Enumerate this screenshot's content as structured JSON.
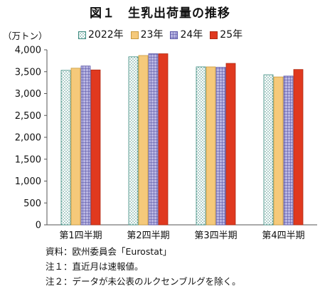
{
  "title": "図１　生乳出荷量の推移",
  "unit_label": "（万トン）",
  "notes": [
    "資料：欧州委員会「Eurostat」",
    "注１：直近月は速報値。",
    "注２：データが未公表のルクセンブルグを除く。"
  ],
  "chart_data": {
    "type": "bar",
    "title": "図１　生乳出荷量の推移",
    "ylabel": "（万トン）",
    "categories": [
      "第1四半期",
      "第2四半期",
      "第3四半期",
      "第4四半期"
    ],
    "ylim": [
      0,
      4000
    ],
    "yticks": [
      0,
      500,
      1000,
      1500,
      2000,
      2500,
      3000,
      3500,
      4000
    ],
    "ytick_labels": [
      "0",
      "500",
      "1,000",
      "1,500",
      "2,000",
      "2,500",
      "3,000",
      "3,500",
      "4,000"
    ],
    "grid": false,
    "legend_position": "top",
    "series": [
      {
        "name": "2022年",
        "values": [
          3530,
          3840,
          3610,
          3430
        ],
        "color": "#ffffff",
        "pattern": "dots-teal"
      },
      {
        "name": "23年",
        "values": [
          3580,
          3870,
          3610,
          3380
        ],
        "color": "#f5c97a",
        "pattern": "solid"
      },
      {
        "name": "24年",
        "values": [
          3630,
          3910,
          3600,
          3400
        ],
        "color": "#8b86c8",
        "pattern": "grid-purple"
      },
      {
        "name": "25年",
        "values": [
          3540,
          3910,
          3690,
          3550
        ],
        "color": "#e0391f",
        "pattern": "solid"
      }
    ]
  }
}
